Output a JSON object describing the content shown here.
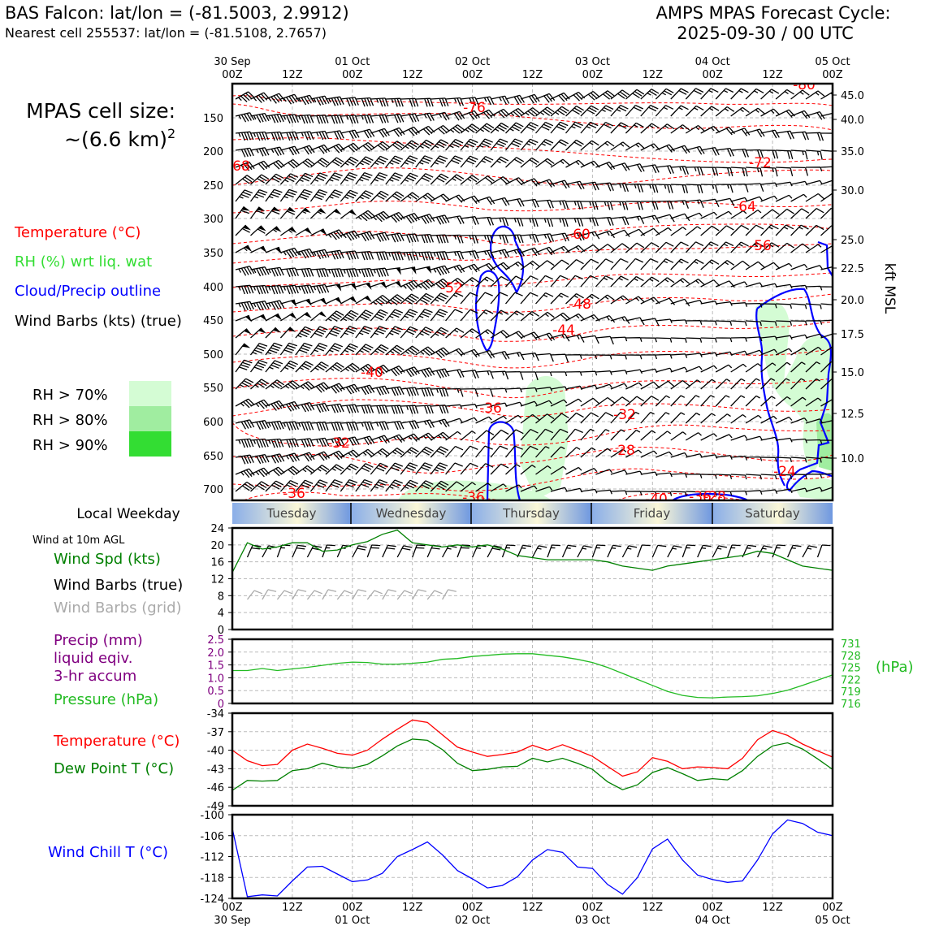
{
  "header": {
    "station_title": "BAS Falcon: lat/lon = (-81.5003, 2.9912)",
    "nearest_cell": "Nearest cell 255537: lat/lon = (-81.5108, 2.7657)",
    "forecast_title_1": "AMPS MPAS Forecast Cycle:",
    "forecast_title_2": "2025-09-30 / 00 UTC"
  },
  "cell_size": {
    "line1": "MPAS cell size:",
    "line2": "~(6.6 km)",
    "exp": "2"
  },
  "legend": {
    "temperature": "Temperature (°C)",
    "rh": "RH (%) wrt liq. wat",
    "cloud": "Cloud/Precip outline",
    "wind": "Wind Barbs (kts) (true)",
    "rh70": "RH > 70%",
    "rh80": "RH > 80%",
    "rh90": "RH > 90%"
  },
  "colors": {
    "temperature": "#ff0000",
    "rh": "#33cc33",
    "cloud": "#0000ff",
    "wind": "#000000",
    "rh70": "#d4fcd4",
    "rh80": "#a0eda0",
    "rh90": "#33dd33",
    "wind_speed": "#008000",
    "grid_barbs": "#aaaaaa",
    "precip": "#800080",
    "pressure": "#22bb22",
    "dewpoint": "#008000",
    "wind_chill": "#0000ff"
  },
  "time_axis": {
    "labels": [
      "00Z",
      "12Z",
      "00Z",
      "12Z",
      "00Z",
      "12Z",
      "00Z",
      "12Z",
      "00Z",
      "12Z",
      "00Z"
    ],
    "dates": [
      "30 Sep",
      "",
      "01 Oct",
      "",
      "02 Oct",
      "",
      "03 Oct",
      "",
      "04 Oct",
      "",
      "05 Oct"
    ]
  },
  "weekday": {
    "label": "Local Weekday",
    "days": [
      "Tuesday",
      "Wednesday",
      "Thursday",
      "Friday",
      "Saturday"
    ]
  },
  "upper": {
    "pressure_ticks": [
      "150",
      "200",
      "250",
      "300",
      "350",
      "400",
      "450",
      "500",
      "550",
      "600",
      "650",
      "700"
    ],
    "kft_ticks": [
      "45.0",
      "40.0",
      "35.0",
      "30.0",
      "25.0",
      "22.5",
      "20.0",
      "17.5",
      "15.0",
      "12.5",
      "10.0"
    ],
    "kft_label": "kft MSL",
    "temp_labels": [
      "-76",
      "-72",
      "-68",
      "-64",
      "-60",
      "-56",
      "-52",
      "-48",
      "-44",
      "-40",
      "-36",
      "-32",
      "-32",
      "-28",
      "-24",
      "-36",
      "-36",
      "-40",
      "-36",
      "-28",
      "-80"
    ]
  },
  "panels": {
    "wind_title": "Wind at 10m AGL",
    "wind_speed_label": "Wind Spd (kts)",
    "wind_barbs_true": "Wind Barbs (true)",
    "wind_barbs_grid": "Wind Barbs (grid)",
    "precip_label_1": "Precip (mm)",
    "precip_label_2": "liquid eqiv.",
    "precip_label_3": "3-hr accum",
    "pressure_label": "Pressure (hPa)",
    "hpa_unit": "(hPa)",
    "temp_label": "Temperature (°C)",
    "dewpoint_label": "Dew Point T (°C)",
    "windchill_label": "Wind Chill T (°C)"
  },
  "chart_data": [
    {
      "type": "line",
      "title": "Wind at 10m AGL",
      "ylabel": "Wind Spd (kts)",
      "ylim": [
        0,
        24
      ],
      "yticks": [
        "0",
        "4",
        "8",
        "12",
        "16",
        "20",
        "24"
      ],
      "x_hours": [
        0,
        3,
        6,
        9,
        12,
        15,
        18,
        21,
        24,
        27,
        30,
        33,
        36,
        39,
        42,
        45,
        48,
        51,
        54,
        57,
        60,
        63,
        66,
        69,
        72,
        75,
        78,
        81,
        84,
        87,
        90,
        93,
        96,
        99,
        102,
        105,
        108,
        111,
        114,
        117,
        120
      ],
      "series": [
        {
          "name": "Wind Spd (kts)",
          "values": [
            13.5,
            20.5,
            19,
            19.5,
            20.5,
            20.5,
            18.5,
            18.8,
            20,
            20.8,
            22.5,
            23.5,
            20.5,
            20,
            19.5,
            20,
            19.5,
            20,
            19,
            17.5,
            17,
            16.5,
            16.5,
            16.5,
            16.5,
            16,
            15,
            14.5,
            14,
            15,
            15.5,
            16,
            16.5,
            17,
            17.5,
            18.5,
            18,
            16.5,
            15,
            14.5,
            14
          ]
        }
      ]
    },
    {
      "type": "line",
      "title": "Precip / Pressure",
      "ylabel": "Precip (mm)",
      "ylim": [
        0,
        2.5
      ],
      "yticks": [
        "0",
        "0.5",
        "1.0",
        "1.5",
        "2.0",
        "2.5"
      ],
      "y2label": "(hPa)",
      "y2lim": [
        716,
        732
      ],
      "y2ticks": [
        "716",
        "719",
        "722",
        "725",
        "728",
        "731"
      ],
      "series": [
        {
          "name": "Pressure (hPa)",
          "values": [
            724.2,
            724.2,
            724.7,
            724.2,
            724.6,
            725,
            725.5,
            726,
            726.3,
            726.2,
            725.8,
            725.8,
            726,
            726.3,
            727,
            727.2,
            727.7,
            728,
            728.3,
            728.4,
            728.4,
            728,
            727.6,
            727,
            726.2,
            725,
            723.5,
            722,
            720.5,
            719,
            718,
            717.5,
            717.4,
            717.6,
            717.7,
            717.9,
            718.5,
            719.3,
            720.5,
            721.8,
            723.1
          ]
        },
        {
          "name": "Precip (mm)",
          "values": []
        }
      ]
    },
    {
      "type": "line",
      "title": "Temperature / Dew Point",
      "ylim": [
        -49,
        -34
      ],
      "yticks": [
        "-49",
        "-46",
        "-43",
        "-40",
        "-37",
        "-34"
      ],
      "series": [
        {
          "name": "Temperature (°C)",
          "values": [
            -40,
            -41.7,
            -42.5,
            -42.3,
            -40,
            -39,
            -39.7,
            -40.5,
            -40.8,
            -40,
            -38.2,
            -36.6,
            -35.1,
            -35.5,
            -37.5,
            -39.5,
            -40.3,
            -41,
            -40.7,
            -40.3,
            -39.2,
            -40,
            -39.1,
            -40,
            -41,
            -42.6,
            -44.2,
            -43.5,
            -41.2,
            -41.8,
            -43,
            -42.7,
            -42.8,
            -43,
            -41.3,
            -38.3,
            -36.8,
            -37.6,
            -39,
            -40.1,
            -41.1
          ]
        },
        {
          "name": "Dew Point T (°C)",
          "values": [
            -46.5,
            -44.9,
            -45,
            -44.9,
            -43.3,
            -43,
            -42.1,
            -42.7,
            -42.9,
            -42.3,
            -40.9,
            -39.3,
            -38.2,
            -38.4,
            -39.9,
            -42.1,
            -43.3,
            -43.1,
            -42.7,
            -42.6,
            -41.3,
            -41.9,
            -41.3,
            -42.1,
            -43.1,
            -45.1,
            -46.4,
            -45.6,
            -43.6,
            -42.8,
            -43.8,
            -44.9,
            -44.6,
            -44.8,
            -43.3,
            -41,
            -39.3,
            -38.8,
            -39.8,
            -41.4,
            -43.1
          ]
        }
      ]
    },
    {
      "type": "line",
      "title": "Wind Chill",
      "ylim": [
        -124,
        -100
      ],
      "yticks": [
        "-124",
        "-118",
        "-112",
        "-106",
        "-100"
      ],
      "series": [
        {
          "name": "Wind Chill T (°C)",
          "values": [
            -104,
            -123.5,
            -123,
            -123.3,
            -119,
            -115,
            -114.8,
            -117,
            -119.2,
            -118.7,
            -116.8,
            -112,
            -110,
            -107.8,
            -111.5,
            -116,
            -118.4,
            -121,
            -120.3,
            -117.8,
            -113,
            -110,
            -110.8,
            -115,
            -115.4,
            -120,
            -122.8,
            -118,
            -109.8,
            -107,
            -113,
            -117.3,
            -118.6,
            -119.4,
            -119,
            -113,
            -105.5,
            -101.5,
            -102.5,
            -105,
            -106
          ]
        }
      ]
    }
  ]
}
